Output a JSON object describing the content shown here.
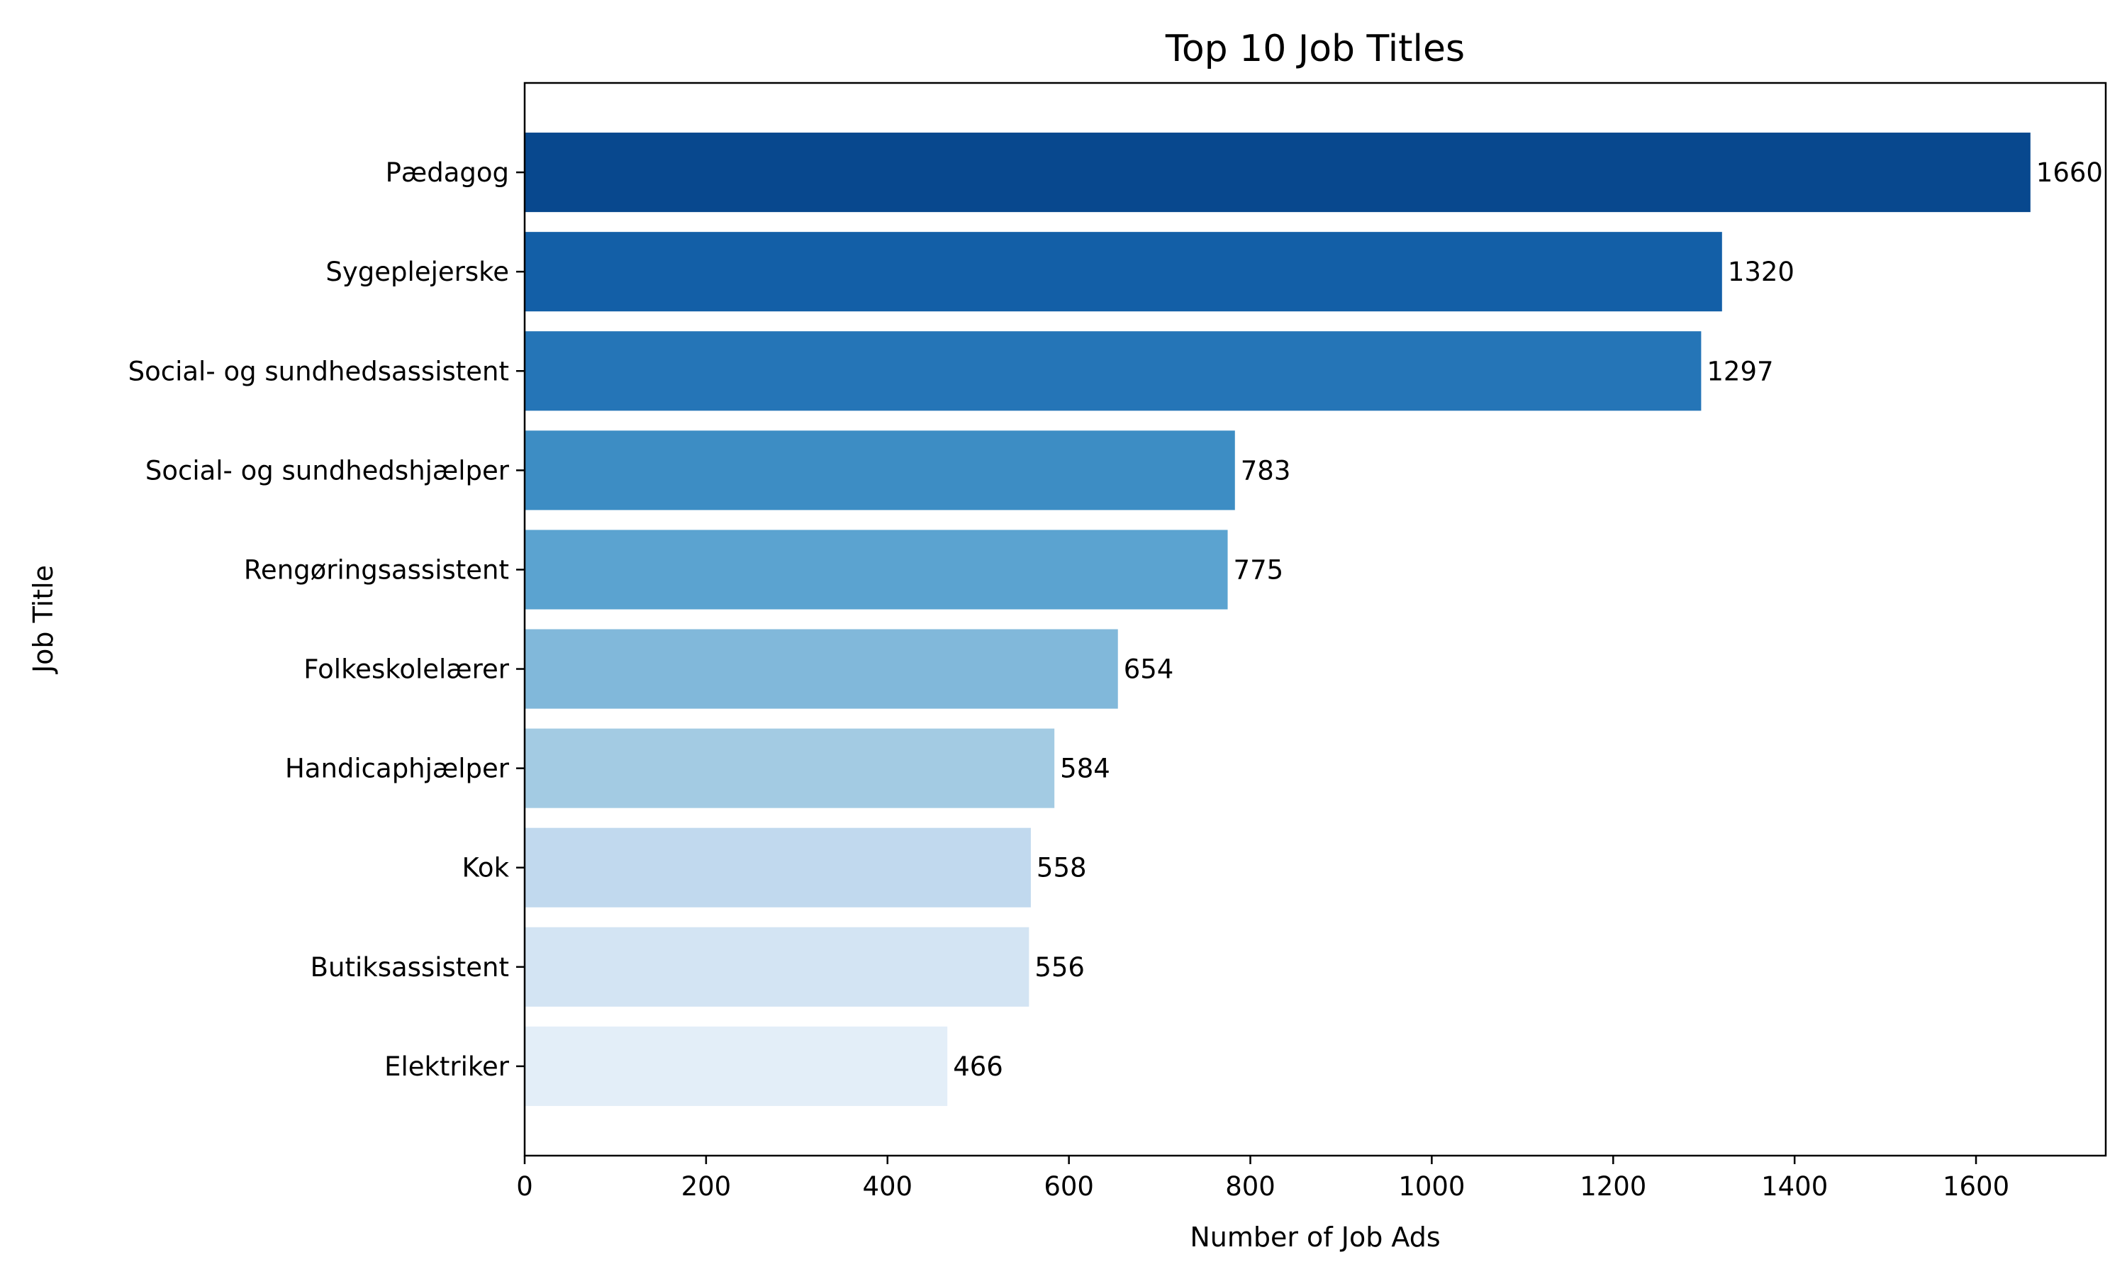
{
  "chart_data": {
    "type": "bar",
    "orientation": "horizontal",
    "title": "Top 10 Job Titles",
    "xlabel": "Number of Job Ads",
    "ylabel": "Job Title",
    "xlim": [
      0,
      1743
    ],
    "xticks": [
      0,
      200,
      400,
      600,
      800,
      1000,
      1200,
      1400,
      1600
    ],
    "grid": false,
    "legend": "none",
    "categories": [
      "Pædagog",
      "Sygeplejerske",
      "Social- og sundhedsassistent",
      "Social- og sundhedshjælper",
      "Rengøringsassistent",
      "Folkeskolelærer",
      "Handicaphjælper",
      "Kok",
      "Butiksassistent",
      "Elektriker"
    ],
    "values": [
      1660,
      1320,
      1297,
      783,
      775,
      654,
      584,
      558,
      556,
      466
    ],
    "colors": [
      "#08488e",
      "#135fa7",
      "#2575b7",
      "#3d8dc4",
      "#5ba3d0",
      "#81b8da",
      "#a3cbe3",
      "#c1d9ee",
      "#d3e4f3",
      "#e3eef8"
    ]
  }
}
